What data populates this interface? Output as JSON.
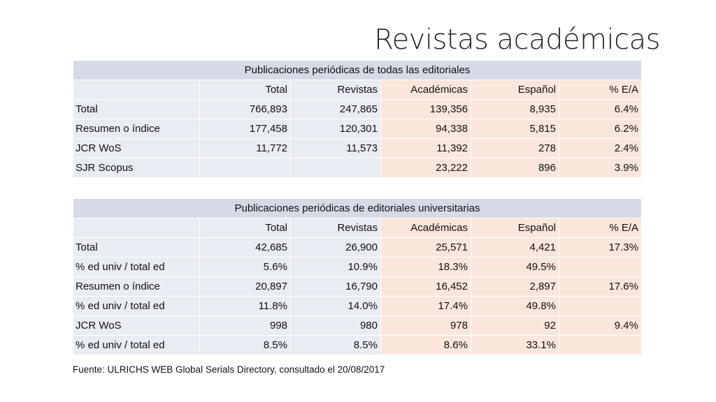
{
  "title": "Revistas académicas",
  "table1": {
    "caption": "Publicaciones periódicas de todas las editoriales",
    "headers": [
      "",
      "Total",
      "Revistas",
      "Académicas",
      "Español",
      "% E/A"
    ],
    "rows": [
      [
        "Total",
        "766,893",
        "247,865",
        "139,356",
        "8,935",
        "6.4%"
      ],
      [
        "Resumen o índice",
        "177,458",
        "120,301",
        "94,338",
        "5,815",
        "6.2%"
      ],
      [
        "JCR WoS",
        "11,772",
        "11,573",
        "11,392",
        "278",
        "2.4%"
      ],
      [
        "SJR Scopus",
        "",
        "",
        "23,222",
        "896",
        "3.9%"
      ]
    ]
  },
  "table2": {
    "caption": "Publicaciones periódicas de editoriales universitarias",
    "headers": [
      "",
      "Total",
      "Revistas",
      "Académicas",
      "Español",
      "% E/A"
    ],
    "rows": [
      [
        "Total",
        "42,685",
        "26,900",
        "25,571",
        "4,421",
        "17.3%"
      ],
      [
        "% ed univ / total ed",
        "5.6%",
        "10.9%",
        "18.3%",
        "49.5%",
        ""
      ],
      [
        "Resumen o índice",
        "20,897",
        "16,790",
        "16,452",
        "2,897",
        "17.6%"
      ],
      [
        "% ed univ / total ed",
        "11.8%",
        "14.0%",
        "17.4%",
        "49.8%",
        ""
      ],
      [
        "JCR WoS",
        "998",
        "980",
        "978",
        "92",
        "9.4%"
      ],
      [
        "% ed univ / total ed",
        "8.5%",
        "8.5%",
        "8.6%",
        "33.1%",
        ""
      ]
    ]
  },
  "source": "Fuente: ULRICHS WEB Global Serials Directory, consultado el 20/08/2017",
  "colors": {
    "caption_bg": "#d5dae6",
    "cell_blue": "#e9ecf3",
    "cell_pink": "#fbe6dc"
  }
}
